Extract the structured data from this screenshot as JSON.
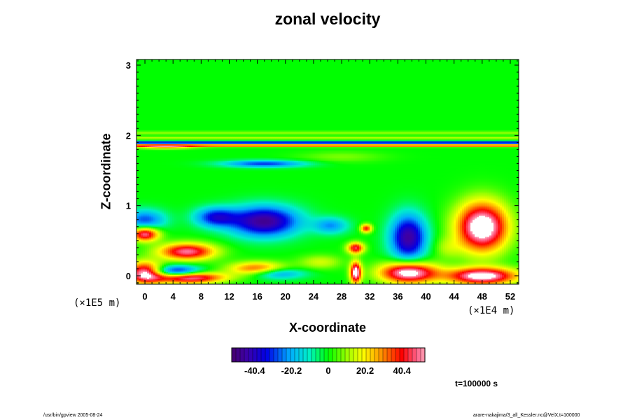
{
  "chart_data": {
    "type": "heatmap",
    "title": "zonal velocity",
    "xlabel": "X-coordinate",
    "ylabel": "Z-coordinate",
    "x_scale_note": "(×1E4 m)",
    "y_scale_note": "(×1E5 m)",
    "xlim": [
      -1.2,
      53.2
    ],
    "ylim": [
      -0.12,
      3.08
    ],
    "x_ticks": [
      "0",
      "4",
      "8",
      "12",
      "16",
      "20",
      "24",
      "28",
      "32",
      "36",
      "40",
      "44",
      "48",
      "52"
    ],
    "y_ticks": [
      "0",
      "1",
      "2",
      "3"
    ],
    "colorbar": {
      "min": -53,
      "max": 53,
      "ticks": [
        "-40.4",
        "-20.2",
        "0",
        "20.2",
        "40.4"
      ],
      "colormap": "rainbow: purple-blue-cyan-green-yellow-red-pink"
    },
    "features": [
      {
        "kind": "jet",
        "x": [
          -1.2,
          53.2
        ],
        "z": 1.9,
        "half_width": 0.02,
        "value": -40
      },
      {
        "kind": "jet",
        "x": [
          -1.2,
          53.2
        ],
        "z": 1.86,
        "half_width": 0.02,
        "value": 38
      },
      {
        "kind": "jet",
        "x": [
          -1.2,
          53.2
        ],
        "z": 1.97,
        "half_width": 0.02,
        "value": 12
      },
      {
        "kind": "jet",
        "x": [
          -1.2,
          53.2
        ],
        "z": 2.04,
        "half_width": 0.025,
        "value": 10
      },
      {
        "kind": "blob",
        "x": 3,
        "z": 1.84,
        "rx": 4,
        "rz": 0.03,
        "value": 25
      },
      {
        "kind": "blob",
        "x": 17,
        "z": 1.6,
        "rx": 6,
        "rz": 0.05,
        "value": -30
      },
      {
        "kind": "blob",
        "x": 17,
        "z": 0.78,
        "rx": 5,
        "rz": 0.22,
        "value": -48
      },
      {
        "kind": "blob",
        "x": 10,
        "z": 0.84,
        "rx": 3,
        "rz": 0.14,
        "value": -32
      },
      {
        "kind": "blob",
        "x": 26.5,
        "z": 0.72,
        "rx": 2.5,
        "rz": 0.12,
        "value": -22
      },
      {
        "kind": "blob",
        "x": 37.5,
        "z": 0.55,
        "rx": 2.6,
        "rz": 0.33,
        "value": -46
      },
      {
        "kind": "blob",
        "x": 0,
        "z": 0.8,
        "rx": 3,
        "rz": 0.15,
        "value": -28
      },
      {
        "kind": "blob",
        "x": 4.5,
        "z": 0.06,
        "rx": 3.5,
        "rz": 0.09,
        "value": -42
      },
      {
        "kind": "blob",
        "x": 18.5,
        "z": 0.04,
        "rx": 4,
        "rz": 0.08,
        "value": -30
      },
      {
        "kind": "blob",
        "x": 48,
        "z": 0.7,
        "rx": 3.6,
        "rz": 0.35,
        "value": 65
      },
      {
        "kind": "blob",
        "x": 6,
        "z": 0.35,
        "rx": 4,
        "rz": 0.12,
        "value": 50
      },
      {
        "kind": "blob",
        "x": 6,
        "z": -0.02,
        "rx": 5,
        "rz": 0.08,
        "value": 60
      },
      {
        "kind": "blob",
        "x": 0,
        "z": 0.05,
        "rx": 2.5,
        "rz": 0.15,
        "value": 55
      },
      {
        "kind": "blob",
        "x": 0,
        "z": 0.6,
        "rx": 2,
        "rz": 0.1,
        "value": 52
      },
      {
        "kind": "blob",
        "x": 37.5,
        "z": 0.05,
        "rx": 4,
        "rz": 0.15,
        "value": 62
      },
      {
        "kind": "blob",
        "x": 48,
        "z": 0,
        "rx": 5,
        "rz": 0.12,
        "value": 60
      },
      {
        "kind": "blob",
        "x": 30,
        "z": 0.4,
        "rx": 1.2,
        "rz": 0.08,
        "value": 45
      },
      {
        "kind": "blob",
        "x": 30,
        "z": 0.05,
        "rx": 0.8,
        "rz": 0.15,
        "value": 60
      },
      {
        "kind": "blob",
        "x": 31.5,
        "z": 0.68,
        "rx": 0.8,
        "rz": 0.06,
        "value": 40
      },
      {
        "kind": "blob",
        "x": 16,
        "z": 0.1,
        "rx": 4,
        "rz": 0.1,
        "value": 38
      },
      {
        "kind": "blob",
        "x": 25,
        "z": 0.2,
        "rx": 3,
        "rz": 0.1,
        "value": 15
      },
      {
        "kind": "blob",
        "x": 43,
        "z": 0.4,
        "rx": 2,
        "rz": 0.15,
        "value": 10
      },
      {
        "kind": "blob",
        "x": 28,
        "z": 1.7,
        "rx": 6,
        "rz": 0.08,
        "value": 8
      }
    ]
  },
  "axes": {
    "x_scale_note": "(×1E4 m)",
    "y_scale_note": "(×1E5 m)"
  },
  "info": {
    "time": "t=100000 s",
    "footer_left": "/usr/bin/gpview 2005-08-24",
    "footer_right": "arare-nakajima/3_all_Kessler.nc@VelX,t=100000"
  }
}
